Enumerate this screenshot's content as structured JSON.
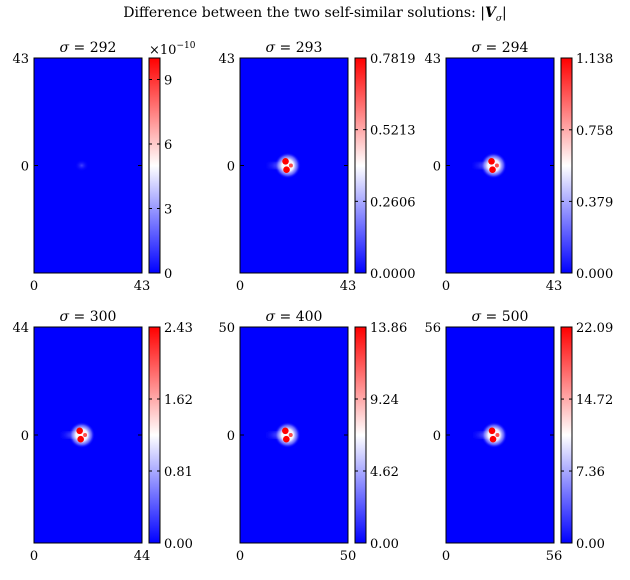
{
  "figure": {
    "title_text": "Difference between the two self-similar solutions: ",
    "title_symbol_open": "|",
    "title_symbol_bold": "V",
    "title_symbol_sub": "σ",
    "title_symbol_close": "|"
  },
  "chart_data": [
    {
      "type": "heatmap",
      "title": "σ = 292",
      "sigma": 292,
      "xlim": [
        0,
        43
      ],
      "ylim": [
        -43,
        43
      ],
      "xticks": [
        "0",
        "43"
      ],
      "yticks": [
        "43",
        "0"
      ],
      "colorbar": {
        "min": 0,
        "max": 10,
        "ticks": [
          "0",
          "3",
          "6",
          "9"
        ],
        "tick_values": [
          0,
          3,
          6,
          9
        ],
        "exponent": "×10",
        "exponent_power": "−10"
      },
      "feature": {
        "x": 19,
        "y": 0,
        "strength": "faint"
      }
    },
    {
      "type": "heatmap",
      "title": "σ = 293",
      "sigma": 293,
      "xlim": [
        0,
        43
      ],
      "ylim": [
        -43,
        43
      ],
      "xticks": [
        "0",
        "43"
      ],
      "yticks": [
        "43",
        "0"
      ],
      "colorbar": {
        "min": 0,
        "max": 0.7819,
        "ticks": [
          "0.0000",
          "0.2606",
          "0.5213",
          "0.7819"
        ],
        "tick_values": [
          0,
          0.2606,
          0.5213,
          0.7819
        ]
      },
      "feature": {
        "x": 19,
        "y": 0,
        "strength": "full"
      }
    },
    {
      "type": "heatmap",
      "title": "σ = 294",
      "sigma": 294,
      "xlim": [
        0,
        43
      ],
      "ylim": [
        -43,
        43
      ],
      "xticks": [
        "0",
        "43"
      ],
      "yticks": [
        "43",
        "0"
      ],
      "colorbar": {
        "min": 0,
        "max": 1.138,
        "ticks": [
          "0.000",
          "0.379",
          "0.758",
          "1.138"
        ],
        "tick_values": [
          0,
          0.379,
          0.758,
          1.138
        ]
      },
      "feature": {
        "x": 19,
        "y": 0,
        "strength": "full"
      }
    },
    {
      "type": "heatmap",
      "title": "σ = 300",
      "sigma": 300,
      "xlim": [
        0,
        44
      ],
      "ylim": [
        -44,
        44
      ],
      "xticks": [
        "0",
        "44"
      ],
      "yticks": [
        "44",
        "0"
      ],
      "colorbar": {
        "min": 0,
        "max": 2.43,
        "ticks": [
          "0.00",
          "0.81",
          "1.62",
          "2.43"
        ],
        "tick_values": [
          0,
          0.81,
          1.62,
          2.43
        ]
      },
      "feature": {
        "x": 19.5,
        "y": 0,
        "strength": "full"
      }
    },
    {
      "type": "heatmap",
      "title": "σ = 400",
      "sigma": 400,
      "xlim": [
        0,
        50
      ],
      "ylim": [
        -50,
        50
      ],
      "xticks": [
        "0",
        "50"
      ],
      "yticks": [
        "50",
        "0"
      ],
      "colorbar": {
        "min": 0,
        "max": 13.86,
        "ticks": [
          "0.00",
          "4.62",
          "9.24",
          "13.86"
        ],
        "tick_values": [
          0,
          4.62,
          9.24,
          13.86
        ]
      },
      "feature": {
        "x": 22,
        "y": 0,
        "strength": "full"
      }
    },
    {
      "type": "heatmap",
      "title": "σ = 500",
      "sigma": 500,
      "xlim": [
        0,
        56
      ],
      "ylim": [
        -56,
        56
      ],
      "xticks": [
        "0",
        "56"
      ],
      "yticks": [
        "56",
        "0"
      ],
      "colorbar": {
        "min": 0,
        "max": 22.09,
        "ticks": [
          "0.00",
          "7.36",
          "14.72",
          "22.09"
        ],
        "tick_values": [
          0,
          7.36,
          14.72,
          22.09
        ]
      },
      "feature": {
        "x": 25,
        "y": 0,
        "strength": "full"
      }
    }
  ]
}
